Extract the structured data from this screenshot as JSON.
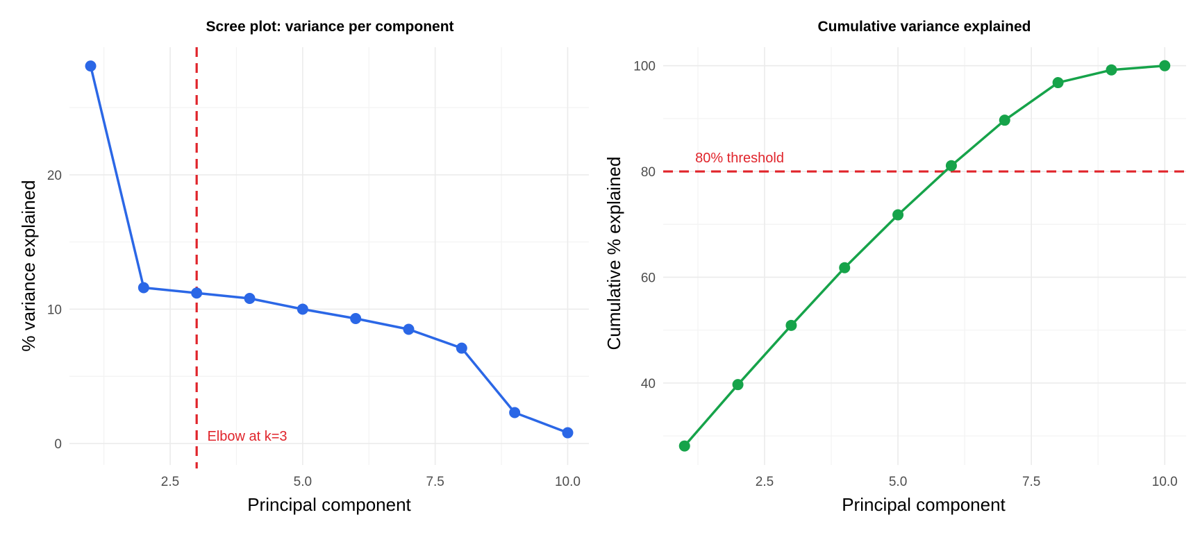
{
  "chart_data": [
    {
      "type": "line",
      "title": "Scree plot: variance per component",
      "xlabel": "Principal component",
      "ylabel": "% variance explained",
      "xlim": [
        0.6,
        10.4
      ],
      "ylim": [
        -1.6,
        29.5
      ],
      "x_ticks": [
        2.5,
        5.0,
        7.5,
        10.0
      ],
      "x_tick_labels": [
        "2.5",
        "5.0",
        "7.5",
        "10.0"
      ],
      "y_ticks": [
        0,
        10,
        20
      ],
      "y_tick_labels": [
        "0",
        "10",
        "20"
      ],
      "grid": true,
      "color": "#2b67e6",
      "series": [
        {
          "x": [
            1,
            2,
            3,
            4,
            5,
            6,
            7,
            8,
            9,
            10
          ],
          "values": [
            28.1,
            11.6,
            11.2,
            10.8,
            10.0,
            9.3,
            8.5,
            7.1,
            2.3,
            0.8
          ]
        }
      ],
      "reference_line": {
        "orientation": "vertical",
        "x": 3,
        "color": "#e0242b"
      },
      "annotation": {
        "text": "Elbow at k=3",
        "x": 3.2,
        "y": 0.2,
        "color": "#e0242b"
      }
    },
    {
      "type": "line",
      "title": "Cumulative variance explained",
      "xlabel": "Principal component",
      "ylabel": "Cumulative % explained",
      "xlim": [
        0.6,
        10.4
      ],
      "ylim": [
        24.5,
        103.5
      ],
      "x_ticks": [
        2.5,
        5.0,
        7.5,
        10.0
      ],
      "x_tick_labels": [
        "2.5",
        "5.0",
        "7.5",
        "10.0"
      ],
      "y_ticks": [
        40,
        60,
        80,
        100
      ],
      "y_tick_labels": [
        "40",
        "60",
        "80",
        "100"
      ],
      "grid": true,
      "color": "#16a34a",
      "series": [
        {
          "x": [
            1,
            2,
            3,
            4,
            5,
            6,
            7,
            8,
            9,
            10
          ],
          "values": [
            28.1,
            39.7,
            50.9,
            61.8,
            71.8,
            81.1,
            89.7,
            96.8,
            99.2,
            100.0
          ]
        }
      ],
      "reference_line": {
        "orientation": "horizontal",
        "y": 80,
        "color": "#e0242b"
      },
      "annotation": {
        "text": "80% threshold",
        "x": 1.2,
        "y": 81.7,
        "color": "#e0242b"
      }
    }
  ]
}
